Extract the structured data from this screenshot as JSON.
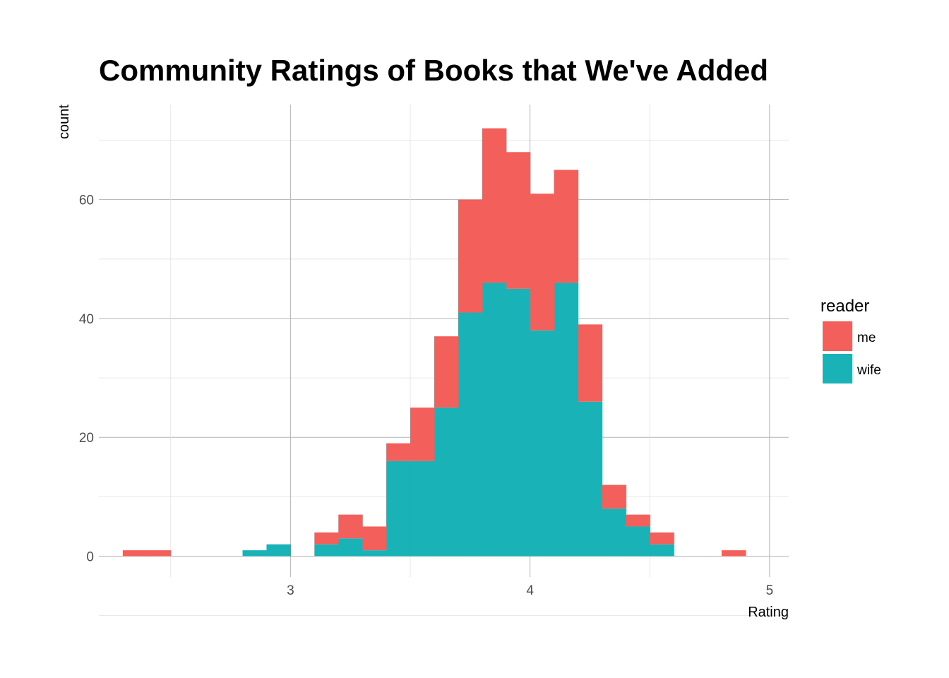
{
  "chart_data": {
    "type": "histogram",
    "title": "Community Ratings of Books that We've Added",
    "xlabel": "Rating",
    "ylabel": "count",
    "xlim": [
      2.2,
      5.08
    ],
    "ylim": [
      -3.5,
      76
    ],
    "x_ticks": [
      3,
      4,
      5
    ],
    "y_ticks": [
      0,
      20,
      40,
      60
    ],
    "bin_width": 0.1,
    "grid": true,
    "stacked": true,
    "legend": {
      "title": "reader",
      "position": "right",
      "entries": [
        {
          "name": "me",
          "color": "#F3605B"
        },
        {
          "name": "wife",
          "color": "#19B3B7"
        }
      ]
    },
    "series": [
      {
        "name": "me",
        "color": "#F3605B",
        "values": [
          {
            "x": 2.35,
            "y": 1
          },
          {
            "x": 2.45,
            "y": 1
          },
          {
            "x": 3.15,
            "y": 2
          },
          {
            "x": 3.25,
            "y": 4
          },
          {
            "x": 3.35,
            "y": 4
          },
          {
            "x": 3.45,
            "y": 3
          },
          {
            "x": 3.55,
            "y": 9
          },
          {
            "x": 3.65,
            "y": 12
          },
          {
            "x": 3.75,
            "y": 19
          },
          {
            "x": 3.85,
            "y": 26
          },
          {
            "x": 3.95,
            "y": 23
          },
          {
            "x": 4.05,
            "y": 23
          },
          {
            "x": 4.15,
            "y": 19
          },
          {
            "x": 4.25,
            "y": 13
          },
          {
            "x": 4.35,
            "y": 4
          },
          {
            "x": 4.45,
            "y": 2
          },
          {
            "x": 4.55,
            "y": 2
          },
          {
            "x": 4.85,
            "y": 1
          }
        ]
      },
      {
        "name": "wife",
        "color": "#19B3B7",
        "values": [
          {
            "x": 2.85,
            "y": 1
          },
          {
            "x": 2.95,
            "y": 2
          },
          {
            "x": 3.15,
            "y": 2
          },
          {
            "x": 3.25,
            "y": 3
          },
          {
            "x": 3.35,
            "y": 1
          },
          {
            "x": 3.45,
            "y": 16
          },
          {
            "x": 3.55,
            "y": 16
          },
          {
            "x": 3.65,
            "y": 25
          },
          {
            "x": 3.75,
            "y": 41
          },
          {
            "x": 3.85,
            "y": 46
          },
          {
            "x": 3.95,
            "y": 45
          },
          {
            "x": 4.05,
            "y": 38
          },
          {
            "x": 4.15,
            "y": 46
          },
          {
            "x": 4.25,
            "y": 26
          },
          {
            "x": 4.35,
            "y": 8
          },
          {
            "x": 4.45,
            "y": 5
          },
          {
            "x": 4.55,
            "y": 2
          }
        ]
      }
    ]
  }
}
